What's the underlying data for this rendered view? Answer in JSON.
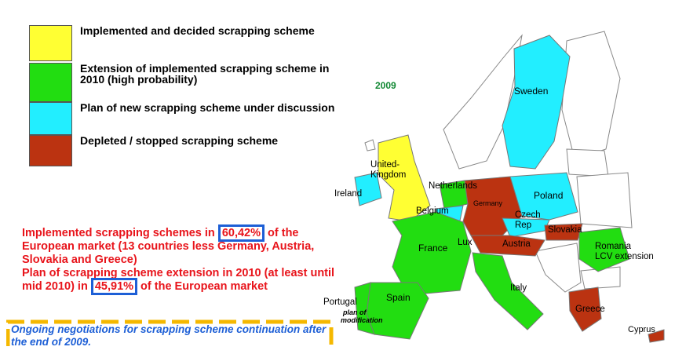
{
  "legend": [
    {
      "label": "Implemented and decided scrapping scheme",
      "color": "#ffff33"
    },
    {
      "label": "Extension of implemented scrapping scheme in 2010 (high probability)",
      "color": "#22dd11"
    },
    {
      "label": "Plan of new scrapping scheme under discussion",
      "color": "#22eeff"
    },
    {
      "label": "Depleted / stopped scrapping scheme",
      "color": "#bb3311"
    }
  ],
  "year": "2009",
  "countries": [
    {
      "label": [
        "Sweden"
      ],
      "color": "#22eeff"
    },
    {
      "label": [
        "United-",
        "Kingdom"
      ],
      "color": "#ffff33"
    },
    {
      "label": [
        "Ireland"
      ],
      "color": "#22eeff"
    },
    {
      "label": [
        "Netherlands"
      ],
      "color": "#22dd11"
    },
    {
      "label": [
        "Belgium"
      ],
      "color": "#22eeff"
    },
    {
      "label": [
        "Lux"
      ],
      "color": "#22dd11"
    },
    {
      "label": [
        "Germany"
      ],
      "color": "#bb3311"
    },
    {
      "label": [
        "Poland"
      ],
      "color": "#22eeff"
    },
    {
      "label": [
        "Czech",
        "Rep"
      ],
      "color": "#22eeff"
    },
    {
      "label": [
        "Slovakia"
      ],
      "color": "#bb3311"
    },
    {
      "label": [
        "Austria"
      ],
      "color": "#bb3311"
    },
    {
      "label": [
        "France"
      ],
      "color": "#22dd11"
    },
    {
      "label": [
        "Romania",
        "LCV extension"
      ],
      "color": "#22dd11"
    },
    {
      "label": [
        "Italy"
      ],
      "color": "#22dd11"
    },
    {
      "label": [
        "Spain"
      ],
      "color": "#22dd11"
    },
    {
      "label": [
        "Portugal"
      ],
      "color": "#22dd11"
    },
    {
      "label": [
        "Greece"
      ],
      "color": "#bb3311"
    },
    {
      "label": [
        "Cyprus"
      ],
      "color": "#bb3311"
    }
  ],
  "portugal_note": [
    "plan of",
    "modification"
  ],
  "summary": {
    "line1_before": "Implemented scrapping schemes in ",
    "line1_pct": "60,42%",
    "line1_after": " of the European market (13 countries less Germany, Austria, Slovakia and Greece)",
    "line2_before": "Plan of scrapping scheme extension in 2010 (at least until mid 2010) in ",
    "line2_pct": "45,91%",
    "line2_after": " of the European market"
  },
  "note": "Ongoing negotiations for scrapping scheme continuation after the end of 2009."
}
